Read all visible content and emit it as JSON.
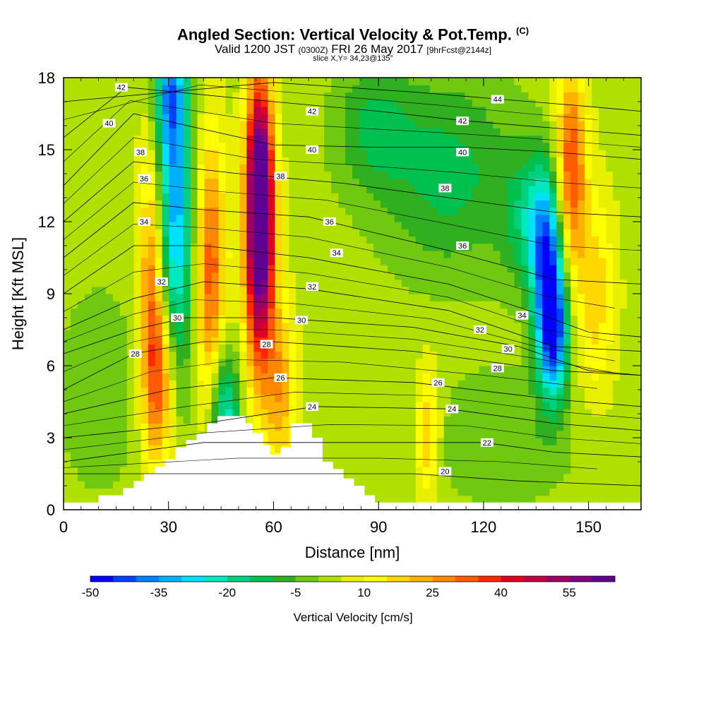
{
  "title_main": "Angled Section: Vertical Velocity & Pot.Temp.",
  "title_unit": "(C)",
  "subtitle_valid": "Valid 1200 JST",
  "subtitle_z": "(0300Z)",
  "subtitle_date": "FRI 26 May 2017",
  "subtitle_fcst": "[9hrFcst@2144z]",
  "slice_label": "slice X,Y= 34,23@135°",
  "chart_data": {
    "type": "heatmap",
    "xlabel": "Distance [nm]",
    "ylabel": "Height [Kft MSL]",
    "xlim": [
      0,
      165
    ],
    "ylim": [
      0,
      18
    ],
    "x_ticks": [
      "0",
      "30",
      "60",
      "90",
      "120",
      "150"
    ],
    "y_ticks": [
      "0",
      "3",
      "6",
      "9",
      "12",
      "15",
      "18"
    ],
    "colorbar": {
      "label": "Vertical Velocity [cm/s]",
      "min": -50,
      "max": 65,
      "step": 5,
      "tick_labels": [
        "-50",
        "-35",
        "-20",
        "-5",
        "10",
        "25",
        "40",
        "55"
      ],
      "colors": [
        "#0000ff",
        "#0040ff",
        "#0080ff",
        "#00b0ff",
        "#00e0ff",
        "#00e8c0",
        "#00d080",
        "#00c050",
        "#30b020",
        "#70c810",
        "#b0e000",
        "#e8f000",
        "#ffff00",
        "#ffd800",
        "#ffb000",
        "#ff8800",
        "#ff5c00",
        "#ff2800",
        "#e00020",
        "#c00040",
        "#a00060",
        "#800080",
        "#600090"
      ]
    },
    "terrain": [
      [
        0,
        0.3
      ],
      [
        10,
        0.3
      ],
      [
        10,
        0.6
      ],
      [
        16,
        0.6
      ],
      [
        16,
        0.6
      ],
      [
        17,
        0.6
      ],
      [
        17,
        0.9
      ],
      [
        20,
        0.9
      ],
      [
        20,
        1.2
      ],
      [
        23,
        1.2
      ],
      [
        23,
        1.5
      ],
      [
        26,
        1.5
      ],
      [
        26,
        1.8
      ],
      [
        29,
        1.8
      ],
      [
        29,
        2.1
      ],
      [
        32,
        2.1
      ],
      [
        32,
        2.6
      ],
      [
        35,
        2.6
      ],
      [
        35,
        2.9
      ],
      [
        38,
        2.9
      ],
      [
        38,
        3.2
      ],
      [
        41,
        3.2
      ],
      [
        41,
        3.6
      ],
      [
        44,
        3.6
      ],
      [
        44,
        3.9
      ],
      [
        52,
        3.9
      ],
      [
        52,
        3.6
      ],
      [
        54,
        3.6
      ],
      [
        54,
        3.2
      ],
      [
        57,
        3.2
      ],
      [
        57,
        2.7
      ],
      [
        59,
        2.7
      ],
      [
        59,
        2.3
      ],
      [
        62,
        2.3
      ],
      [
        62,
        2.6
      ],
      [
        65,
        2.6
      ],
      [
        65,
        3.6
      ],
      [
        71,
        3.6
      ],
      [
        71,
        3.0
      ],
      [
        74,
        3.0
      ],
      [
        74,
        2.0
      ],
      [
        77,
        2.0
      ],
      [
        77,
        1.7
      ],
      [
        80,
        1.7
      ],
      [
        80,
        1.3
      ],
      [
        83,
        1.3
      ],
      [
        83,
        1.0
      ],
      [
        86,
        1.0
      ],
      [
        86,
        0.6
      ],
      [
        89,
        0.6
      ],
      [
        89,
        0.3
      ],
      [
        165,
        0.3
      ]
    ],
    "velocity_features": [
      {
        "x": 32,
        "y": 12.5,
        "sx": 3.5,
        "sy": 5.0,
        "value": -35
      },
      {
        "x": 30,
        "y": 17.5,
        "sx": 3.0,
        "sy": 2.0,
        "value": -25
      },
      {
        "x": 46,
        "y": 4.0,
        "sx": 3.0,
        "sy": 2.0,
        "value": -28
      },
      {
        "x": 56,
        "y": 11.0,
        "sx": 3.0,
        "sy": 4.0,
        "value": 55
      },
      {
        "x": 56,
        "y": 14.0,
        "sx": 2.5,
        "sy": 3.0,
        "value": 35
      },
      {
        "x": 42,
        "y": 10.0,
        "sx": 3.0,
        "sy": 4.0,
        "value": 30
      },
      {
        "x": 25,
        "y": 9.0,
        "sx": 2.5,
        "sy": 4.5,
        "value": 25
      },
      {
        "x": 28,
        "y": 5.5,
        "sx": 3.0,
        "sy": 2.5,
        "value": 25
      },
      {
        "x": 62,
        "y": 5.0,
        "sx": 3.0,
        "sy": 2.5,
        "value": 20
      },
      {
        "x": 104,
        "y": 3.2,
        "sx": 2.5,
        "sy": 2.0,
        "value": 18
      },
      {
        "x": 140,
        "y": 7.5,
        "sx": 3.0,
        "sy": 2.0,
        "value": -45
      },
      {
        "x": 138,
        "y": 10.0,
        "sx": 3.0,
        "sy": 2.5,
        "value": -30
      },
      {
        "x": 135,
        "y": 12.0,
        "sx": 6.0,
        "sy": 2.0,
        "value": -20
      },
      {
        "x": 110,
        "y": 14.0,
        "sx": 14.0,
        "sy": 3.0,
        "value": -15
      },
      {
        "x": 88,
        "y": 16.0,
        "sx": 8.0,
        "sy": 2.0,
        "value": -12
      },
      {
        "x": 145,
        "y": 14.0,
        "sx": 3.0,
        "sy": 3.0,
        "value": 35
      },
      {
        "x": 152,
        "y": 9.0,
        "sx": 4.0,
        "sy": 3.0,
        "value": 15
      },
      {
        "x": 125,
        "y": 3.0,
        "sx": 15.0,
        "sy": 2.0,
        "value": -8
      },
      {
        "x": 10,
        "y": 5.0,
        "sx": 8.0,
        "sy": 3.0,
        "value": -8
      }
    ],
    "contours": [
      {
        "label": "20",
        "pts": [
          [
            0,
            1.5
          ],
          [
            60,
            1.5
          ],
          [
            100,
            1.5
          ],
          [
            130,
            1.2
          ],
          [
            165,
            1.0
          ]
        ],
        "label_x": 108
      },
      {
        "label": "22",
        "pts": [
          [
            0,
            2.0
          ],
          [
            40,
            2.8
          ],
          [
            80,
            2.8
          ],
          [
            120,
            2.8
          ],
          [
            140,
            2.4
          ],
          [
            165,
            2.2
          ]
        ],
        "label_x": 121
      },
      {
        "label": "24",
        "pts": [
          [
            0,
            3.0
          ],
          [
            40,
            3.6
          ],
          [
            72,
            4.3
          ],
          [
            110,
            4.2
          ],
          [
            140,
            3.6
          ],
          [
            165,
            3.3
          ]
        ],
        "label_x": 110
      },
      {
        "label": "26",
        "pts": [
          [
            0,
            4.0
          ],
          [
            30,
            5.0
          ],
          [
            60,
            5.5
          ],
          [
            100,
            5.3
          ],
          [
            140,
            4.6
          ],
          [
            165,
            4.3
          ]
        ],
        "label_x": 99
      },
      {
        "label": "28",
        "pts": [
          [
            0,
            5.0
          ],
          [
            20,
            6.5
          ],
          [
            40,
            7.0
          ],
          [
            60,
            7.0
          ],
          [
            100,
            6.6
          ],
          [
            140,
            5.8
          ],
          [
            165,
            5.6
          ]
        ],
        "label_x": 121
      },
      {
        "label": "30",
        "pts": [
          [
            0,
            6.5
          ],
          [
            20,
            7.5
          ],
          [
            35,
            8.0
          ],
          [
            60,
            8.0
          ],
          [
            100,
            7.6
          ],
          [
            130,
            6.8
          ],
          [
            150,
            5.8
          ],
          [
            165,
            5.6
          ]
        ],
        "label_x": 126
      },
      {
        "label": "32",
        "pts": [
          [
            0,
            7.5
          ],
          [
            20,
            8.8
          ],
          [
            40,
            9.5
          ],
          [
            70,
            9.2
          ],
          [
            110,
            8.3
          ],
          [
            140,
            6.8
          ],
          [
            165,
            6.6
          ]
        ],
        "label_x": 120
      },
      {
        "label": "34",
        "pts": [
          [
            0,
            9.0
          ],
          [
            20,
            11.0
          ],
          [
            40,
            11.0
          ],
          [
            70,
            10.5
          ],
          [
            110,
            9.4
          ],
          [
            135,
            8.2
          ],
          [
            150,
            7.4
          ],
          [
            165,
            7.2
          ]
        ],
        "label_x": 134
      },
      {
        "label": "36",
        "pts": [
          [
            0,
            10.5
          ],
          [
            20,
            12.8
          ],
          [
            40,
            12.5
          ],
          [
            70,
            12.2
          ],
          [
            110,
            10.8
          ],
          [
            140,
            9.6
          ],
          [
            165,
            9.4
          ]
        ],
        "label_x": 112
      },
      {
        "label": "38",
        "pts": [
          [
            0,
            12.0
          ],
          [
            20,
            14.5
          ],
          [
            50,
            14.0
          ],
          [
            80,
            13.6
          ],
          [
            110,
            13.0
          ],
          [
            140,
            12.4
          ],
          [
            165,
            12.2
          ]
        ],
        "label_x": 110
      },
      {
        "label": "40",
        "pts": [
          [
            0,
            13.5
          ],
          [
            20,
            16.5
          ],
          [
            60,
            15.2
          ],
          [
            90,
            15.1
          ],
          [
            115,
            15.1
          ],
          [
            140,
            14.9
          ],
          [
            165,
            14.6
          ]
        ],
        "label_x": 115
      },
      {
        "label": "42",
        "pts": [
          [
            0,
            15.5
          ],
          [
            18,
            17.6
          ],
          [
            60,
            17.0
          ],
          [
            90,
            16.6
          ],
          [
            115,
            16.2
          ],
          [
            140,
            15.9
          ],
          [
            165,
            15.6
          ]
        ],
        "label_x": 115
      },
      {
        "label": "44",
        "pts": [
          [
            0,
            17.0
          ],
          [
            60,
            17.8
          ],
          [
            100,
            17.4
          ],
          [
            125,
            17.1
          ],
          [
            150,
            16.8
          ],
          [
            165,
            16.6
          ]
        ],
        "label_x": 125
      }
    ],
    "contour_label_positions": [
      {
        "label": "42",
        "x": 16.5,
        "y": 17.6
      },
      {
        "label": "40",
        "x": 13,
        "y": 16.1
      },
      {
        "label": "38",
        "x": 22,
        "y": 14.9
      },
      {
        "label": "36",
        "x": 23,
        "y": 13.8
      },
      {
        "label": "34",
        "x": 23,
        "y": 12.0
      },
      {
        "label": "32",
        "x": 28,
        "y": 9.5
      },
      {
        "label": "30",
        "x": 32.5,
        "y": 8.0
      },
      {
        "label": "28",
        "x": 20.5,
        "y": 6.5
      },
      {
        "label": "42",
        "x": 71,
        "y": 16.6
      },
      {
        "label": "40",
        "x": 71,
        "y": 15.0
      },
      {
        "label": "38",
        "x": 62,
        "y": 13.9
      },
      {
        "label": "36",
        "x": 76,
        "y": 12.0
      },
      {
        "label": "34",
        "x": 78,
        "y": 10.7
      },
      {
        "label": "32",
        "x": 71,
        "y": 9.3
      },
      {
        "label": "30",
        "x": 68,
        "y": 7.9
      },
      {
        "label": "28",
        "x": 58,
        "y": 6.9
      },
      {
        "label": "26",
        "x": 62,
        "y": 5.5
      },
      {
        "label": "24",
        "x": 71,
        "y": 4.3
      },
      {
        "label": "44",
        "x": 124,
        "y": 17.1
      },
      {
        "label": "42",
        "x": 114,
        "y": 16.2
      },
      {
        "label": "40",
        "x": 114,
        "y": 14.9
      },
      {
        "label": "38",
        "x": 109,
        "y": 13.4
      },
      {
        "label": "36",
        "x": 114,
        "y": 11.0
      },
      {
        "label": "34",
        "x": 131,
        "y": 8.1
      },
      {
        "label": "32",
        "x": 119,
        "y": 7.5
      },
      {
        "label": "30",
        "x": 127,
        "y": 6.7
      },
      {
        "label": "28",
        "x": 124,
        "y": 5.9
      },
      {
        "label": "26",
        "x": 107,
        "y": 5.3
      },
      {
        "label": "24",
        "x": 111,
        "y": 4.2
      },
      {
        "label": "22",
        "x": 121,
        "y": 2.8
      },
      {
        "label": "20",
        "x": 109,
        "y": 1.6
      }
    ]
  }
}
